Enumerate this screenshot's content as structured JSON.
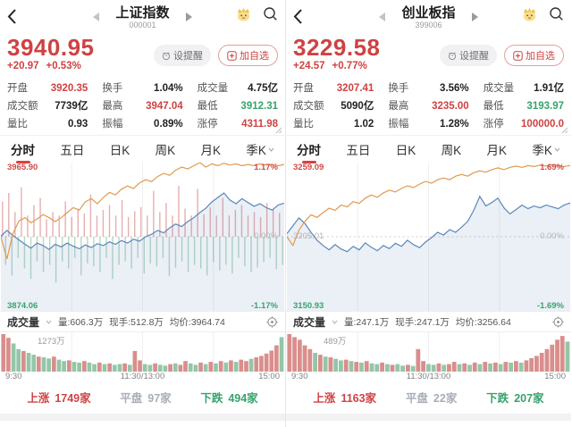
{
  "colors": {
    "red": "#cf4242",
    "green": "#35a36d",
    "orange": "#e09a4e",
    "blue": "#5a87b9",
    "gray_label": "#b5b5b5"
  },
  "panels": [
    {
      "header": {
        "title": "上证指数",
        "code": "000001"
      },
      "price": {
        "value": "3940.95",
        "change": "+20.97",
        "change_pct": "+0.53%"
      },
      "actions": {
        "alert": "设提醒",
        "add": "加自选"
      },
      "stats": [
        {
          "label": "开盘",
          "value": "3920.35",
          "color": "r"
        },
        {
          "label": "换手",
          "value": "1.04%",
          "color": "k"
        },
        {
          "label": "成交量",
          "value": "4.75亿",
          "color": "k"
        },
        {
          "label": "成交额",
          "value": "7739亿",
          "color": "k"
        },
        {
          "label": "最高",
          "value": "3947.04",
          "color": "r"
        },
        {
          "label": "最低",
          "value": "3912.31",
          "color": "g"
        },
        {
          "label": "量比",
          "value": "0.93",
          "color": "k"
        },
        {
          "label": "振幅",
          "value": "0.89%",
          "color": "k"
        },
        {
          "label": "涨停",
          "value": "4311.98",
          "color": "r"
        }
      ],
      "tabs": [
        {
          "label": "分时",
          "active": true
        },
        {
          "label": "五日"
        },
        {
          "label": "日K"
        },
        {
          "label": "周K"
        },
        {
          "label": "月K"
        },
        {
          "label": "季K",
          "has_chevron": true
        }
      ],
      "chart": {
        "type": "line",
        "high_label": "3965.90",
        "high_pct": "1.17%",
        "mid_left": "",
        "mid_pct": "0.00%",
        "low_label": "3874.06",
        "low_pct": "-1.17%",
        "scale": 1.17,
        "x_axis": [
          "9:30",
          "11:30/13:00",
          "15:00"
        ],
        "price_pct": [
          0.01,
          0.1,
          0.02,
          -0.05,
          -0.12,
          -0.18,
          -0.1,
          -0.14,
          -0.2,
          -0.12,
          -0.16,
          -0.1,
          -0.15,
          -0.19,
          -0.13,
          -0.17,
          -0.11,
          -0.14,
          -0.08,
          -0.12,
          -0.06,
          -0.1,
          -0.04,
          -0.07,
          0.0,
          0.04,
          0.1,
          0.06,
          0.14,
          0.2,
          0.16,
          0.24,
          0.3,
          0.38,
          0.45,
          0.55,
          0.62,
          0.69,
          0.58,
          0.52,
          0.6,
          0.54,
          0.48,
          0.52,
          0.46,
          0.42,
          0.5,
          0.53
        ],
        "avg_pct": [
          0.0,
          -0.35,
          0.05,
          0.25,
          0.3,
          0.22,
          0.28,
          0.35,
          0.3,
          0.24,
          0.3,
          0.38,
          0.46,
          0.42,
          0.55,
          0.6,
          0.52,
          0.62,
          0.7,
          0.66,
          0.75,
          0.8,
          0.76,
          0.85,
          0.9,
          0.87,
          0.95,
          1.0,
          0.97,
          1.05,
          1.1,
          1.07,
          1.12,
          1.17,
          1.1,
          1.15,
          1.12,
          1.16,
          1.13,
          1.15,
          1.12,
          1.14,
          1.12,
          1.15,
          1.13,
          1.14,
          1.12,
          1.14
        ],
        "overlay_bars": [
          0.5,
          -0.4,
          0.62,
          -0.55,
          0.35,
          -0.3,
          0.7,
          -0.45,
          0.3,
          -0.6,
          0.45,
          -0.35,
          0.55,
          -0.5,
          0.25,
          -0.4,
          0.35,
          -0.65,
          0.3,
          -0.35,
          0.5,
          -0.45,
          0.28,
          -0.3,
          0.4,
          -0.55,
          0.33,
          -0.38,
          0.6,
          -0.42,
          0.3,
          -0.5,
          0.38,
          -0.3,
          0.45,
          -0.6,
          0.3,
          -0.4,
          0.52,
          -0.35,
          0.28,
          -0.45,
          0.36,
          -0.3,
          0.42,
          -0.52,
          0.3,
          -0.38,
          0.65,
          -0.42,
          0.35,
          -0.3,
          0.48,
          -0.56,
          0.3,
          -0.44,
          0.72,
          -0.35,
          0.4,
          -0.5,
          0.3,
          -0.4,
          0.68,
          -0.45,
          0.32,
          -0.55,
          0.42,
          -0.36,
          0.3,
          -0.48,
          0.55,
          -0.4,
          0.3,
          -0.52,
          0.38,
          -0.3,
          0.45,
          -0.42,
          0.3,
          -0.5,
          0.35,
          -0.44,
          0.28,
          -0.36,
          0.48,
          -0.3,
          0.4,
          -0.46,
          0.34,
          -0.4
        ]
      },
      "volume_head": {
        "name": "成交量",
        "vol": "量:606.3万",
        "hand": "现手:512.8万",
        "avg": "均价:3964.74"
      },
      "volume_chart": {
        "max_label": "1273万",
        "bars": [
          1.0,
          0.9,
          -0.75,
          -0.6,
          0.55,
          -0.5,
          -0.45,
          0.4,
          -0.38,
          -0.35,
          0.4,
          -0.32,
          -0.28,
          0.3,
          -0.26,
          -0.24,
          0.28,
          -0.24,
          -0.2,
          0.24,
          -0.2,
          0.22,
          -0.18,
          -0.2,
          0.22,
          -0.18,
          0.55,
          0.3,
          -0.2,
          -0.18,
          0.22,
          -0.18,
          -0.16,
          0.2,
          -0.22,
          0.18,
          0.28,
          -0.22,
          -0.18,
          0.24,
          -0.2,
          0.26,
          -0.22,
          0.28,
          -0.24,
          0.3,
          -0.26,
          0.32,
          0.28,
          -0.34,
          0.38,
          0.42,
          0.48,
          0.56,
          0.7,
          -0.92
        ]
      },
      "axis": [
        "9:30",
        "11:30/13:00",
        "15:00"
      ],
      "breadth": [
        {
          "label": "上涨",
          "value": "1749家",
          "color": "r"
        },
        {
          "label": "平盘",
          "value": "97家",
          "color": "gray"
        },
        {
          "label": "下跌",
          "value": "494家",
          "color": "g"
        }
      ]
    },
    {
      "header": {
        "title": "创业板指",
        "code": "399006"
      },
      "price": {
        "value": "3229.58",
        "change": "+24.57",
        "change_pct": "+0.77%"
      },
      "actions": {
        "alert": "设提醒",
        "add": "加自选"
      },
      "stats": [
        {
          "label": "开盘",
          "value": "3207.41",
          "color": "r"
        },
        {
          "label": "换手",
          "value": "3.56%",
          "color": "k"
        },
        {
          "label": "成交量",
          "value": "1.91亿",
          "color": "k"
        },
        {
          "label": "成交额",
          "value": "5090亿",
          "color": "k"
        },
        {
          "label": "最高",
          "value": "3235.00",
          "color": "r"
        },
        {
          "label": "最低",
          "value": "3193.97",
          "color": "g"
        },
        {
          "label": "量比",
          "value": "1.02",
          "color": "k"
        },
        {
          "label": "振幅",
          "value": "1.28%",
          "color": "k"
        },
        {
          "label": "涨停",
          "value": "100000.0",
          "color": "r"
        }
      ],
      "tabs": [
        {
          "label": "分时",
          "active": true
        },
        {
          "label": "五日"
        },
        {
          "label": "日K"
        },
        {
          "label": "周K"
        },
        {
          "label": "月K"
        },
        {
          "label": "季K",
          "has_chevron": true
        }
      ],
      "chart": {
        "type": "line",
        "high_label": "3259.09",
        "high_pct": "1.69%",
        "mid_left": "3205.01",
        "mid_pct": "0.00%",
        "low_label": "3150.93",
        "low_pct": "-1.69%",
        "scale": 1.69,
        "x_axis": [
          "9:30",
          "11:30/13:00",
          "15:00"
        ],
        "price_pct": [
          0.07,
          0.25,
          0.43,
          0.3,
          0.1,
          -0.08,
          -0.2,
          -0.3,
          -0.18,
          -0.28,
          -0.34,
          -0.22,
          -0.3,
          -0.14,
          -0.24,
          -0.32,
          -0.2,
          -0.27,
          -0.15,
          -0.22,
          -0.08,
          -0.18,
          -0.25,
          -0.12,
          -0.02,
          0.1,
          0.04,
          0.16,
          0.1,
          0.22,
          0.35,
          0.6,
          0.92,
          0.7,
          0.78,
          0.88,
          0.66,
          0.52,
          0.62,
          0.72,
          0.64,
          0.7,
          0.66,
          0.72,
          0.68,
          0.64,
          0.72,
          0.77
        ],
        "avg_pct": [
          0.0,
          -0.2,
          0.15,
          0.35,
          0.5,
          0.44,
          0.55,
          0.65,
          0.6,
          0.72,
          0.68,
          0.8,
          0.76,
          0.88,
          0.95,
          0.9,
          1.0,
          1.06,
          1.02,
          1.1,
          1.16,
          1.12,
          1.2,
          1.26,
          1.22,
          1.3,
          1.34,
          1.3,
          1.38,
          1.42,
          1.38,
          1.46,
          1.5,
          1.47,
          1.53,
          1.57,
          1.53,
          1.58,
          1.61,
          1.58,
          1.62,
          1.6,
          1.63,
          1.61,
          1.64,
          1.62,
          1.6,
          1.62
        ],
        "overlay_bars": []
      },
      "volume_head": {
        "name": "成交量",
        "vol": "量:247.1万",
        "hand": "现手:247.1万",
        "avg": "均价:3256.64"
      },
      "volume_chart": {
        "max_label": "489万",
        "bars": [
          1.0,
          0.92,
          0.85,
          0.7,
          0.6,
          -0.5,
          0.45,
          -0.4,
          0.38,
          -0.34,
          -0.3,
          0.32,
          -0.28,
          0.26,
          -0.24,
          0.28,
          -0.22,
          -0.2,
          0.24,
          -0.2,
          0.18,
          -0.2,
          -0.16,
          0.18,
          -0.15,
          0.6,
          0.28,
          -0.2,
          -0.18,
          0.22,
          -0.18,
          0.2,
          0.26,
          -0.2,
          0.22,
          -0.18,
          0.24,
          -0.2,
          0.26,
          -0.22,
          0.24,
          -0.2,
          0.26,
          -0.24,
          0.28,
          -0.24,
          0.3,
          0.36,
          0.42,
          0.5,
          0.6,
          0.72,
          0.85,
          0.95,
          -0.8
        ]
      },
      "axis": [
        "9:30",
        "11:30/13:00",
        "15:00"
      ],
      "breadth": [
        {
          "label": "上涨",
          "value": "1163家",
          "color": "r"
        },
        {
          "label": "平盘",
          "value": "22家",
          "color": "gray"
        },
        {
          "label": "下跌",
          "value": "207家",
          "color": "g"
        }
      ]
    }
  ]
}
